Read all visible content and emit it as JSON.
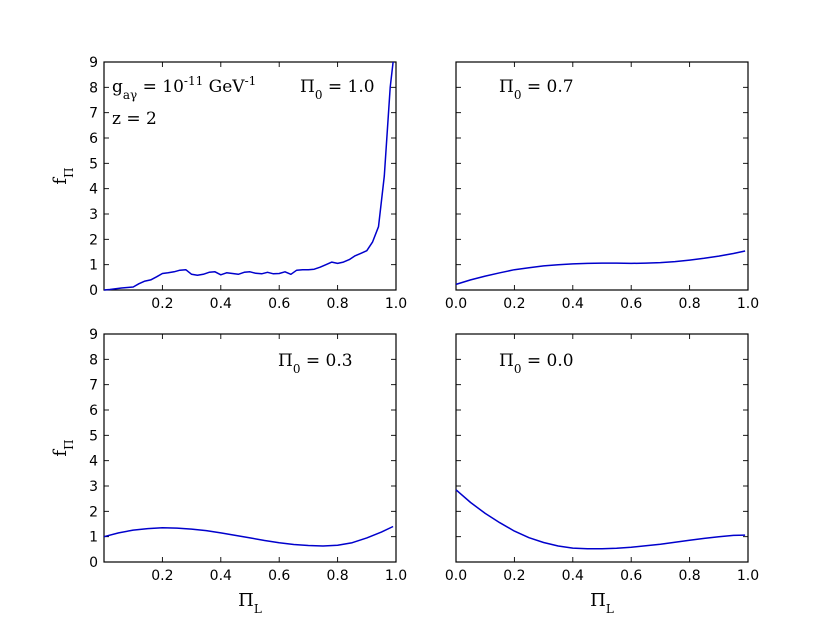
{
  "chart_data": [
    {
      "type": "line",
      "panel": "top-left",
      "xlim": [
        0,
        1
      ],
      "ylim": [
        0,
        9
      ],
      "xticks": [
        "0.2",
        "0.4",
        "0.6",
        "0.8",
        "1.0"
      ],
      "yticks": [
        "0",
        "1",
        "2",
        "3",
        "4",
        "5",
        "6",
        "7",
        "8",
        "9"
      ],
      "xlabel": "",
      "ylabel": "f_Π",
      "annotations": [
        "g_aγ = 10^-11 GeV^-1",
        "z = 2",
        "Π_0 = 1.0"
      ],
      "series": [
        {
          "color": "#0000cc",
          "x": [
            0.0,
            0.02,
            0.04,
            0.06,
            0.08,
            0.1,
            0.12,
            0.14,
            0.16,
            0.18,
            0.2,
            0.22,
            0.24,
            0.26,
            0.28,
            0.3,
            0.32,
            0.34,
            0.36,
            0.38,
            0.4,
            0.42,
            0.44,
            0.46,
            0.48,
            0.5,
            0.52,
            0.54,
            0.56,
            0.58,
            0.6,
            0.62,
            0.64,
            0.66,
            0.68,
            0.7,
            0.72,
            0.74,
            0.76,
            0.78,
            0.8,
            0.82,
            0.84,
            0.86,
            0.88,
            0.9,
            0.92,
            0.94,
            0.96,
            0.98,
            0.99
          ],
          "y": [
            0.0,
            0.02,
            0.05,
            0.08,
            0.1,
            0.12,
            0.25,
            0.35,
            0.4,
            0.52,
            0.65,
            0.68,
            0.72,
            0.78,
            0.8,
            0.62,
            0.58,
            0.62,
            0.7,
            0.72,
            0.6,
            0.68,
            0.65,
            0.62,
            0.7,
            0.72,
            0.66,
            0.64,
            0.7,
            0.64,
            0.65,
            0.72,
            0.62,
            0.78,
            0.8,
            0.8,
            0.82,
            0.9,
            1.0,
            1.1,
            1.05,
            1.1,
            1.2,
            1.35,
            1.45,
            1.55,
            1.9,
            2.5,
            4.5,
            8.0,
            9.0
          ]
        }
      ]
    },
    {
      "type": "line",
      "panel": "top-right",
      "xlim": [
        0,
        1
      ],
      "ylim": [
        0,
        9
      ],
      "xticks": [
        "0.0",
        "0.2",
        "0.4",
        "0.6",
        "0.8",
        "1.0"
      ],
      "yticks": [],
      "annotations": [
        "Π_0 = 0.7"
      ],
      "series": [
        {
          "color": "#0000cc",
          "x": [
            0.0,
            0.05,
            0.1,
            0.15,
            0.2,
            0.25,
            0.3,
            0.35,
            0.4,
            0.45,
            0.5,
            0.55,
            0.6,
            0.65,
            0.7,
            0.75,
            0.8,
            0.85,
            0.9,
            0.95,
            0.99
          ],
          "y": [
            0.22,
            0.4,
            0.55,
            0.68,
            0.8,
            0.88,
            0.95,
            1.0,
            1.03,
            1.05,
            1.06,
            1.06,
            1.05,
            1.06,
            1.08,
            1.12,
            1.18,
            1.25,
            1.34,
            1.44,
            1.54
          ]
        }
      ]
    },
    {
      "type": "line",
      "panel": "bottom-left",
      "xlim": [
        0,
        1
      ],
      "ylim": [
        0,
        9
      ],
      "xticks": [
        "0.2",
        "0.4",
        "0.6",
        "0.8",
        "1.0"
      ],
      "yticks": [
        "0",
        "1",
        "2",
        "3",
        "4",
        "5",
        "6",
        "7",
        "8",
        "9"
      ],
      "xlabel": "Π_L",
      "ylabel": "f_Π",
      "annotations": [
        "Π_0 = 0.3"
      ],
      "series": [
        {
          "color": "#0000cc",
          "x": [
            0.0,
            0.05,
            0.1,
            0.15,
            0.2,
            0.25,
            0.3,
            0.35,
            0.4,
            0.45,
            0.5,
            0.55,
            0.6,
            0.65,
            0.7,
            0.75,
            0.8,
            0.85,
            0.9,
            0.95,
            0.99
          ],
          "y": [
            1.0,
            1.15,
            1.26,
            1.32,
            1.35,
            1.34,
            1.3,
            1.24,
            1.15,
            1.05,
            0.95,
            0.85,
            0.76,
            0.69,
            0.65,
            0.63,
            0.66,
            0.76,
            0.95,
            1.18,
            1.4
          ]
        }
      ]
    },
    {
      "type": "line",
      "panel": "bottom-right",
      "xlim": [
        0,
        1
      ],
      "ylim": [
        0,
        9
      ],
      "xticks": [
        "0.0",
        "0.2",
        "0.4",
        "0.6",
        "0.8",
        "1.0"
      ],
      "yticks": [],
      "xlabel": "Π_L",
      "annotations": [
        "Π_0 = 0.0"
      ],
      "series": [
        {
          "color": "#0000cc",
          "x": [
            0.0,
            0.05,
            0.1,
            0.15,
            0.2,
            0.25,
            0.3,
            0.35,
            0.4,
            0.45,
            0.5,
            0.55,
            0.6,
            0.65,
            0.7,
            0.75,
            0.8,
            0.85,
            0.9,
            0.95,
            0.99
          ],
          "y": [
            2.85,
            2.35,
            1.92,
            1.55,
            1.22,
            0.96,
            0.77,
            0.63,
            0.55,
            0.52,
            0.52,
            0.54,
            0.58,
            0.64,
            0.7,
            0.78,
            0.86,
            0.93,
            1.0,
            1.05,
            1.06
          ]
        }
      ]
    }
  ]
}
